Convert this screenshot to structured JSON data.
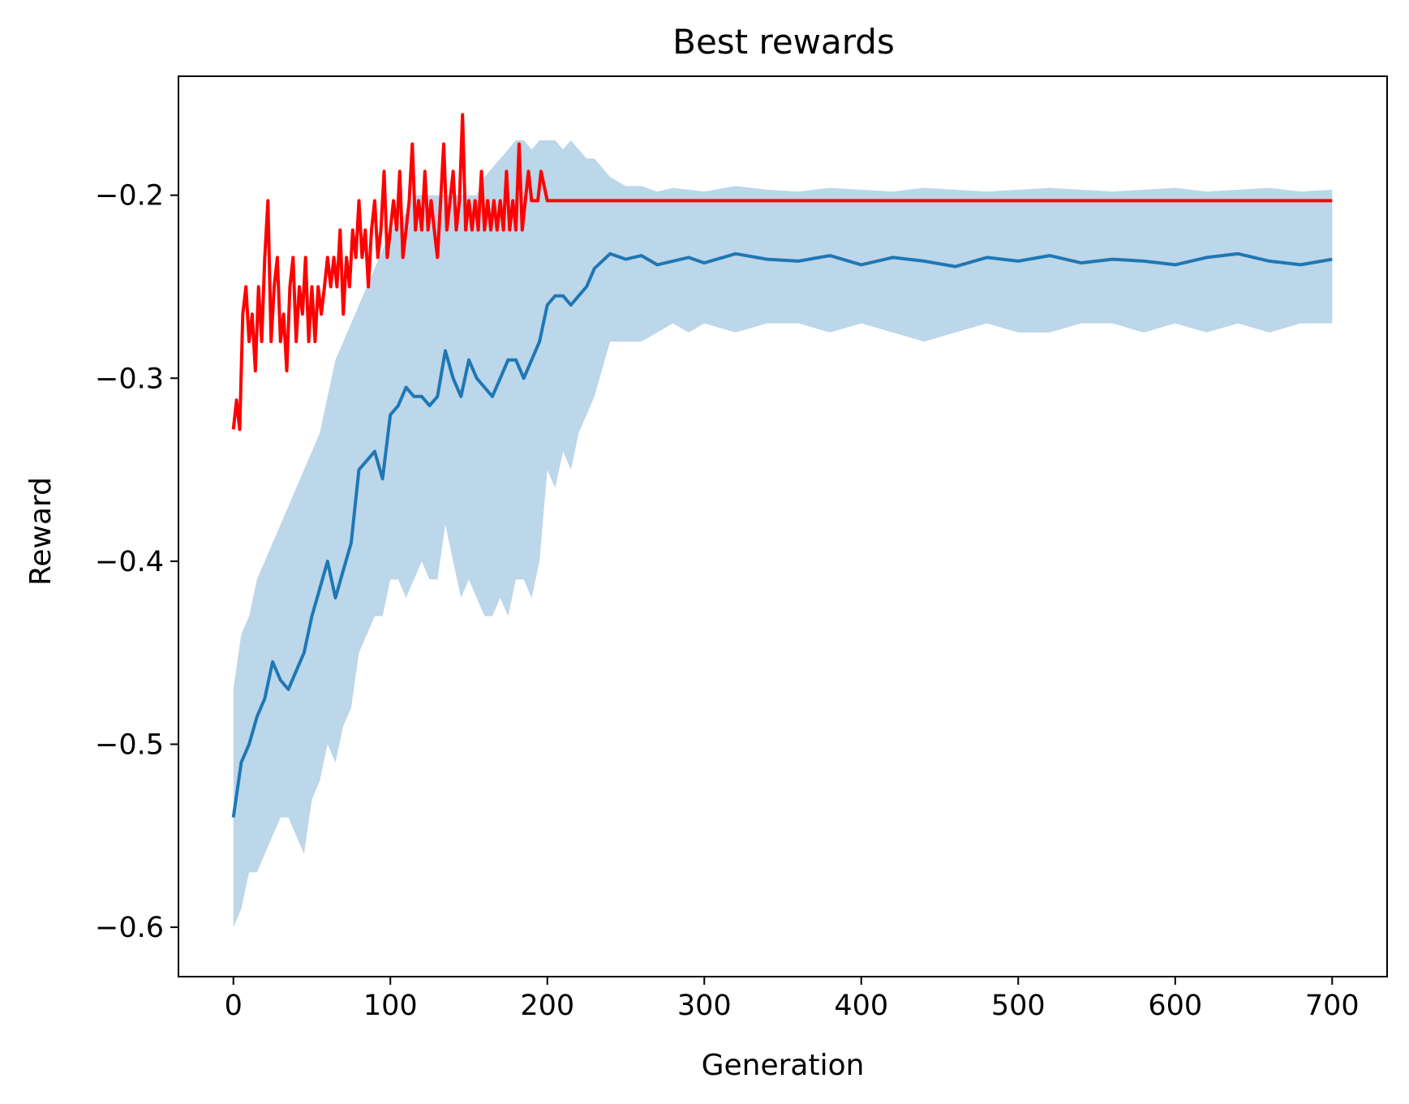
{
  "chart_data": {
    "type": "line",
    "title": "Best rewards",
    "xlabel": "Generation",
    "ylabel": "Reward",
    "xlim": [
      -35,
      735
    ],
    "ylim": [
      -0.627,
      -0.135
    ],
    "xticks": [
      0,
      100,
      200,
      300,
      400,
      500,
      600,
      700
    ],
    "yticks": [
      -0.6,
      -0.5,
      -0.4,
      -0.3,
      -0.2
    ],
    "ytick_labels": [
      "−0.6",
      "−0.5",
      "−0.4",
      "−0.3",
      "−0.2"
    ],
    "grid": false,
    "legend": "none",
    "series": [
      {
        "role": "mean with min-max band",
        "color": "#1f77b4",
        "band_color": "#bcd6ea",
        "x": [
          0,
          5,
          10,
          15,
          20,
          25,
          30,
          35,
          40,
          45,
          50,
          55,
          60,
          65,
          70,
          75,
          80,
          85,
          90,
          95,
          100,
          105,
          110,
          115,
          120,
          125,
          130,
          135,
          140,
          145,
          150,
          155,
          160,
          165,
          170,
          175,
          180,
          185,
          190,
          195,
          200,
          205,
          210,
          215,
          220,
          225,
          230,
          240,
          250,
          260,
          270,
          280,
          290,
          300,
          320,
          340,
          360,
          380,
          400,
          420,
          440,
          460,
          480,
          500,
          520,
          540,
          560,
          580,
          600,
          620,
          640,
          660,
          680,
          700
        ],
        "mean": [
          -0.54,
          -0.51,
          -0.5,
          -0.485,
          -0.475,
          -0.455,
          -0.465,
          -0.47,
          -0.46,
          -0.45,
          -0.43,
          -0.415,
          -0.4,
          -0.42,
          -0.405,
          -0.39,
          -0.35,
          -0.345,
          -0.34,
          -0.355,
          -0.32,
          -0.315,
          -0.305,
          -0.31,
          -0.31,
          -0.315,
          -0.31,
          -0.285,
          -0.3,
          -0.31,
          -0.29,
          -0.3,
          -0.305,
          -0.31,
          -0.3,
          -0.29,
          -0.29,
          -0.3,
          -0.29,
          -0.28,
          -0.26,
          -0.255,
          -0.255,
          -0.26,
          -0.255,
          -0.25,
          -0.24,
          -0.232,
          -0.235,
          -0.233,
          -0.238,
          -0.236,
          -0.234,
          -0.237,
          -0.232,
          -0.235,
          -0.236,
          -0.233,
          -0.238,
          -0.234,
          -0.236,
          -0.239,
          -0.234,
          -0.236,
          -0.233,
          -0.237,
          -0.235,
          -0.236,
          -0.238,
          -0.234,
          -0.232,
          -0.236,
          -0.238,
          -0.235
        ],
        "upper": [
          -0.47,
          -0.44,
          -0.43,
          -0.41,
          -0.4,
          -0.39,
          -0.38,
          -0.37,
          -0.36,
          -0.35,
          -0.34,
          -0.33,
          -0.31,
          -0.29,
          -0.28,
          -0.27,
          -0.26,
          -0.25,
          -0.24,
          -0.23,
          -0.22,
          -0.215,
          -0.21,
          -0.2,
          -0.2,
          -0.2,
          -0.2,
          -0.2,
          -0.2,
          -0.2,
          -0.2,
          -0.2,
          -0.19,
          -0.185,
          -0.18,
          -0.175,
          -0.17,
          -0.17,
          -0.175,
          -0.17,
          -0.17,
          -0.17,
          -0.175,
          -0.17,
          -0.175,
          -0.18,
          -0.18,
          -0.19,
          -0.195,
          -0.195,
          -0.198,
          -0.196,
          -0.197,
          -0.198,
          -0.195,
          -0.197,
          -0.198,
          -0.196,
          -0.197,
          -0.198,
          -0.196,
          -0.197,
          -0.198,
          -0.197,
          -0.196,
          -0.197,
          -0.198,
          -0.197,
          -0.196,
          -0.198,
          -0.197,
          -0.196,
          -0.198,
          -0.197
        ],
        "lower": [
          -0.6,
          -0.59,
          -0.57,
          -0.57,
          -0.56,
          -0.55,
          -0.54,
          -0.54,
          -0.55,
          -0.56,
          -0.53,
          -0.52,
          -0.5,
          -0.51,
          -0.49,
          -0.48,
          -0.45,
          -0.44,
          -0.43,
          -0.43,
          -0.41,
          -0.41,
          -0.42,
          -0.41,
          -0.4,
          -0.41,
          -0.41,
          -0.38,
          -0.4,
          -0.42,
          -0.41,
          -0.42,
          -0.43,
          -0.43,
          -0.42,
          -0.43,
          -0.41,
          -0.41,
          -0.42,
          -0.4,
          -0.35,
          -0.36,
          -0.34,
          -0.35,
          -0.33,
          -0.32,
          -0.31,
          -0.28,
          -0.28,
          -0.28,
          -0.275,
          -0.27,
          -0.275,
          -0.27,
          -0.275,
          -0.27,
          -0.27,
          -0.275,
          -0.27,
          -0.275,
          -0.28,
          -0.275,
          -0.27,
          -0.275,
          -0.275,
          -0.27,
          -0.27,
          -0.275,
          -0.27,
          -0.275,
          -0.27,
          -0.275,
          -0.27,
          -0.27
        ]
      },
      {
        "role": "best",
        "color": "#ff0000",
        "x": [
          0,
          2,
          4,
          6,
          8,
          10,
          12,
          14,
          16,
          18,
          20,
          22,
          24,
          26,
          28,
          30,
          32,
          34,
          36,
          38,
          40,
          42,
          44,
          46,
          48,
          50,
          52,
          54,
          56,
          58,
          60,
          62,
          64,
          66,
          68,
          70,
          72,
          74,
          76,
          78,
          80,
          82,
          84,
          86,
          88,
          90,
          92,
          94,
          96,
          98,
          100,
          102,
          104,
          106,
          108,
          110,
          112,
          114,
          116,
          118,
          120,
          122,
          124,
          126,
          128,
          130,
          132,
          134,
          136,
          138,
          140,
          142,
          144,
          146,
          148,
          150,
          152,
          154,
          156,
          158,
          160,
          162,
          164,
          166,
          168,
          170,
          172,
          174,
          176,
          178,
          180,
          182,
          184,
          186,
          188,
          190,
          192,
          194,
          196,
          200,
          300,
          400,
          500,
          600,
          700
        ],
        "values": [
          -0.328,
          -0.312,
          -0.328,
          -0.265,
          -0.25,
          -0.28,
          -0.265,
          -0.296,
          -0.25,
          -0.28,
          -0.234,
          -0.203,
          -0.28,
          -0.25,
          -0.234,
          -0.28,
          -0.265,
          -0.296,
          -0.25,
          -0.234,
          -0.28,
          -0.25,
          -0.265,
          -0.234,
          -0.28,
          -0.25,
          -0.28,
          -0.25,
          -0.265,
          -0.25,
          -0.234,
          -0.25,
          -0.234,
          -0.25,
          -0.219,
          -0.265,
          -0.234,
          -0.25,
          -0.219,
          -0.234,
          -0.203,
          -0.234,
          -0.219,
          -0.25,
          -0.219,
          -0.203,
          -0.234,
          -0.219,
          -0.187,
          -0.234,
          -0.219,
          -0.203,
          -0.219,
          -0.187,
          -0.234,
          -0.219,
          -0.203,
          -0.172,
          -0.219,
          -0.203,
          -0.219,
          -0.187,
          -0.219,
          -0.203,
          -0.219,
          -0.234,
          -0.203,
          -0.172,
          -0.219,
          -0.203,
          -0.187,
          -0.219,
          -0.203,
          -0.156,
          -0.219,
          -0.203,
          -0.219,
          -0.203,
          -0.219,
          -0.187,
          -0.219,
          -0.203,
          -0.219,
          -0.203,
          -0.219,
          -0.203,
          -0.219,
          -0.187,
          -0.219,
          -0.203,
          -0.219,
          -0.172,
          -0.219,
          -0.203,
          -0.187,
          -0.203,
          -0.203,
          -0.203,
          -0.187,
          -0.203,
          -0.203,
          -0.203,
          -0.203,
          -0.203,
          -0.203
        ]
      }
    ]
  }
}
